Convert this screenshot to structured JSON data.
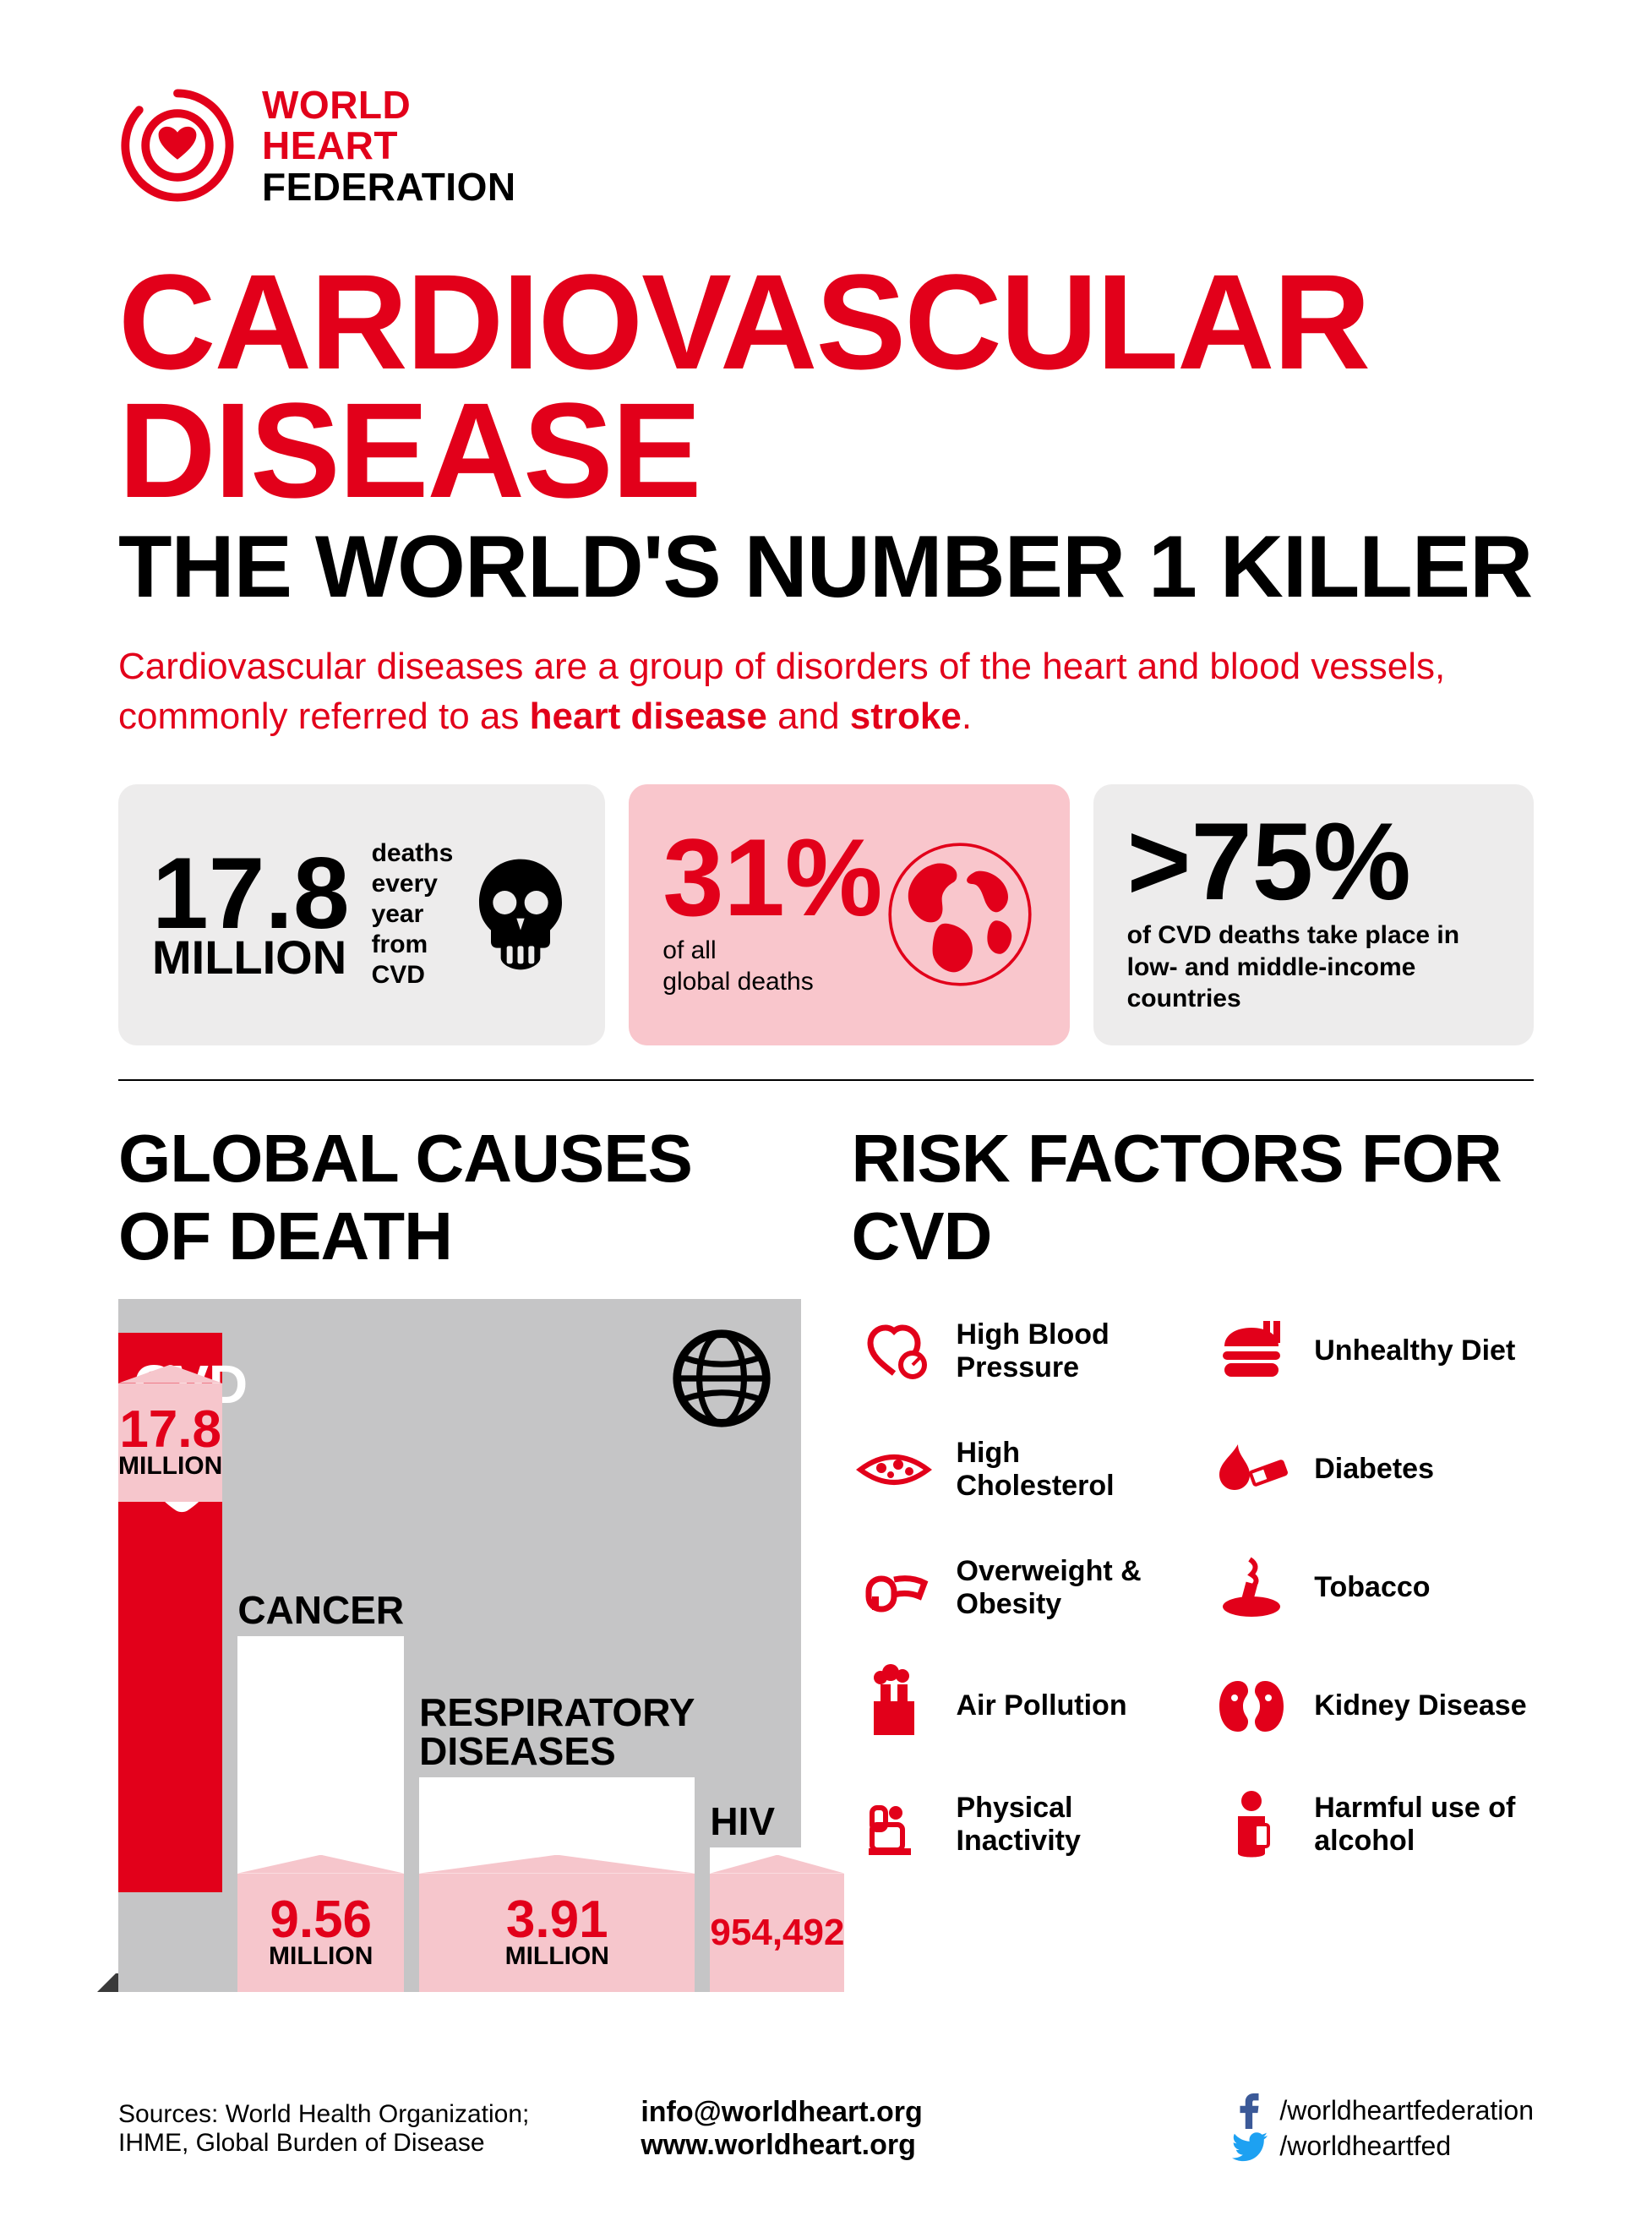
{
  "colors": {
    "red": "#e2001a",
    "black": "#000000",
    "grey_box": "#edecec",
    "pink_box": "#f9c6cc",
    "chart_bg": "#c5c5c6",
    "tag_pink": "#f6c6cc",
    "white": "#ffffff",
    "fb_blue": "#3b5998",
    "tw_blue": "#1da1f2"
  },
  "logo": {
    "line1": "WORLD",
    "line2": "HEART",
    "line3": "FEDERATION"
  },
  "title": "CARDIOVASCULAR DISEASE",
  "subtitle": "THE WORLD'S NUMBER 1 KILLER",
  "intro": {
    "pre": "Cardiovascular diseases are a group of disorders of the heart and blood vessels, commonly referred to as ",
    "bold1": "heart disease",
    "mid": " and ",
    "bold2": "stroke",
    "post": "."
  },
  "stats": {
    "box1": {
      "value": "17.8",
      "unit": "MILLION",
      "desc_l1": "deaths",
      "desc_l2": "every",
      "desc_l3": "year",
      "desc_l4": "from",
      "desc_l5": "CVD",
      "icon": "skull-icon"
    },
    "box2": {
      "value": "31%",
      "desc_l1": "of all",
      "desc_l2": "global deaths",
      "icon": "globe-continents-icon"
    },
    "box3": {
      "value": ">75%",
      "desc": "of CVD deaths take place in low- and middle-income countries"
    }
  },
  "sections": {
    "causes_title": "GLOBAL CAUSES OF DEATH",
    "risk_title": "RISK FACTORS FOR CVD"
  },
  "chart": {
    "type": "bar",
    "background_color": "#c5c5c6",
    "bars": [
      {
        "label": "CVD",
        "value_text": "17.8",
        "unit": "MILLION",
        "value_num": 17800000,
        "height_pct": 100,
        "bar_color": "#e2001a",
        "label_inside": true
      },
      {
        "label": "CANCER",
        "value_text": "9.56",
        "unit": "MILLION",
        "value_num": 9560000,
        "height_pct": 54,
        "bar_color": "#ffffff",
        "label_inside": false
      },
      {
        "label": "RESPIRATORY DISEASES",
        "value_text": "3.91",
        "unit": "MILLION",
        "value_num": 3910000,
        "height_pct": 22,
        "bar_color": "#ffffff",
        "label_inside": false
      },
      {
        "label": "HIV",
        "value_text": "954,492",
        "unit": "",
        "value_num": 954492,
        "height_pct": 6,
        "bar_color": "#ffffff",
        "label_inside": false
      }
    ],
    "tag_color": "#f6c6cc",
    "value_label_color": "#e2001a",
    "unit_label_color": "#000000"
  },
  "risk_factors": [
    {
      "icon": "blood-pressure-icon",
      "label": "High Blood Pressure"
    },
    {
      "icon": "burger-icon",
      "label": "Unhealthy Diet"
    },
    {
      "icon": "cholesterol-icon",
      "label": "High Cholesterol"
    },
    {
      "icon": "diabetes-icon",
      "label": "Diabetes"
    },
    {
      "icon": "obesity-icon",
      "label": "Overweight & Obesity"
    },
    {
      "icon": "tobacco-icon",
      "label": "Tobacco"
    },
    {
      "icon": "pollution-icon",
      "label": "Air Pollution"
    },
    {
      "icon": "kidney-icon",
      "label": "Kidney Disease"
    },
    {
      "icon": "inactivity-icon",
      "label": "Physical Inactivity"
    },
    {
      "icon": "alcohol-icon",
      "label": "Harmful use of alcohol"
    }
  ],
  "footer": {
    "sources_l1": "Sources: World Health Organization;",
    "sources_l2": "IHME, Global Burden of Disease",
    "email": "info@worldheart.org",
    "web": "www.worldheart.org",
    "facebook": "/worldheartfederation",
    "twitter": "/worldheartfed"
  }
}
